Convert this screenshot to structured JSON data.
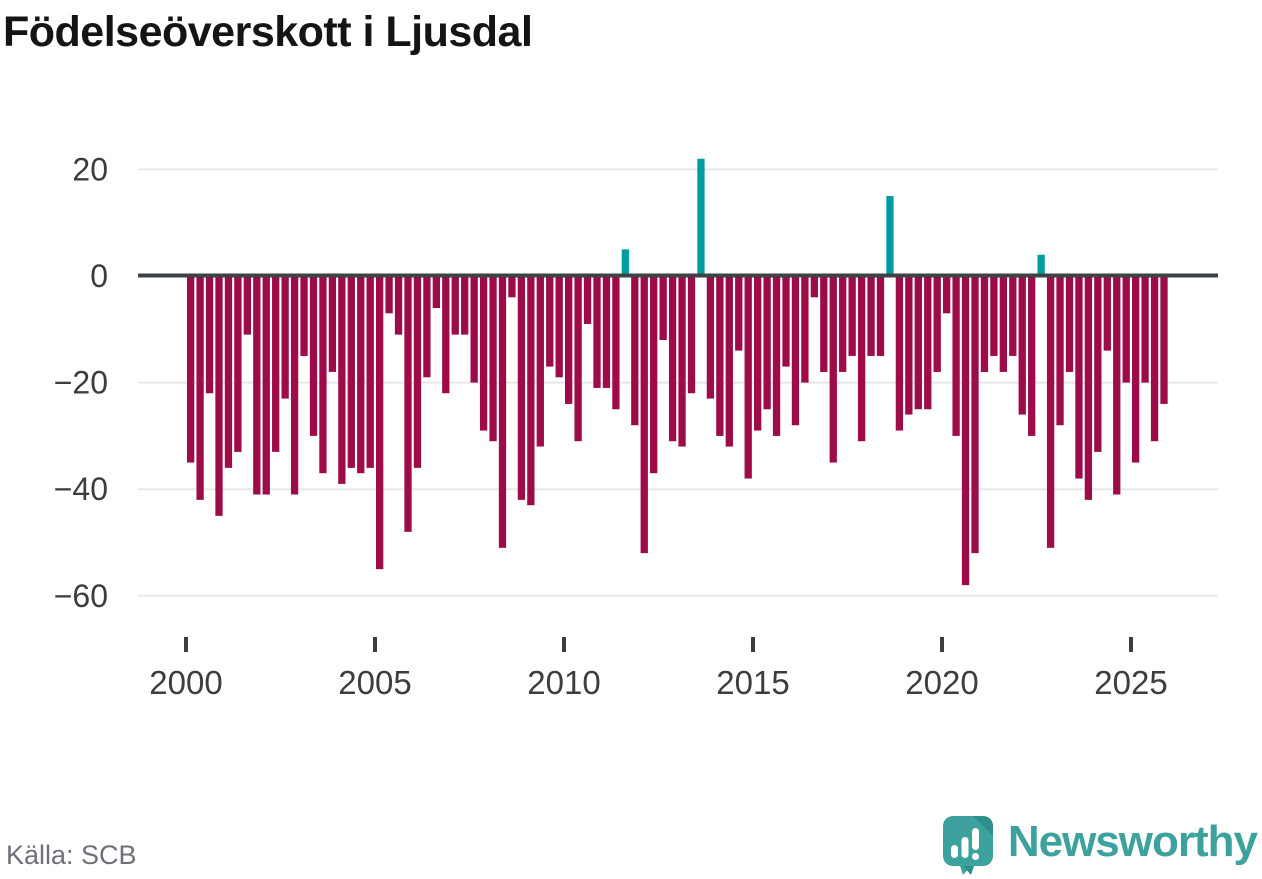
{
  "page": {
    "title": "Födelseöverskott i Ljusdal",
    "source": "Källa: SCB"
  },
  "brand": {
    "wordmark": "Newsworthy"
  },
  "colors": {
    "bar_negative": "#9e0b49",
    "bar_positive": "#009da0",
    "zero_line": "#3e4145",
    "gridline": "#e7e7e7",
    "axis_text": "#3d3d3d",
    "tick_mark": "#3d3d3d",
    "title_text": "#141414",
    "source_text": "#6d7079",
    "brand_teal": "#3da29e",
    "brand_teal_dark": "#2e8e8c"
  },
  "chart_data": {
    "type": "bar",
    "title": "Födelseöverskott i Ljusdal",
    "xlabel": "",
    "ylabel": "",
    "x_period": "quarterly",
    "start": {
      "year": 2000,
      "quarter": 1
    },
    "end": {
      "year": 2025,
      "quarter": 4
    },
    "y_ticks": [
      20,
      0,
      -20,
      -40,
      -60
    ],
    "x_ticks": [
      2000,
      2005,
      2010,
      2015,
      2020,
      2025
    ],
    "ylim": [
      -68,
      26
    ],
    "grid": "horizontal",
    "legend": "none",
    "positive_color_meaning": "birth surplus (positive quarters)",
    "negative_color_meaning": "birth deficit (negative quarters)",
    "values": [
      -35,
      -42,
      -22,
      -45,
      -36,
      -33,
      -11,
      -41,
      -41,
      -33,
      -23,
      -41,
      -15,
      -30,
      -37,
      -18,
      -39,
      -36,
      -37,
      -36,
      -55,
      -7,
      -11,
      -48,
      -36,
      -19,
      -6,
      -22,
      -11,
      -11,
      -20,
      -29,
      -31,
      -51,
      -4,
      -42,
      -43,
      -32,
      -17,
      -19,
      -24,
      -31,
      -9,
      -21,
      -21,
      -25,
      5,
      -28,
      -52,
      -37,
      -12,
      -31,
      -32,
      -22,
      22,
      -23,
      -30,
      -32,
      -14,
      -38,
      -29,
      -25,
      -30,
      -17,
      -28,
      -20,
      -4,
      -18,
      -35,
      -18,
      -15,
      -31,
      -15,
      -15,
      15,
      -29,
      -26,
      -25,
      -25,
      -18,
      -7,
      -30,
      -58,
      -52,
      -18,
      -15,
      -18,
      -15,
      -26,
      -30,
      4,
      -51,
      -28,
      -18,
      -38,
      -42,
      -33,
      -14,
      -41,
      -20,
      -35,
      -20,
      -31,
      -24
    ]
  }
}
